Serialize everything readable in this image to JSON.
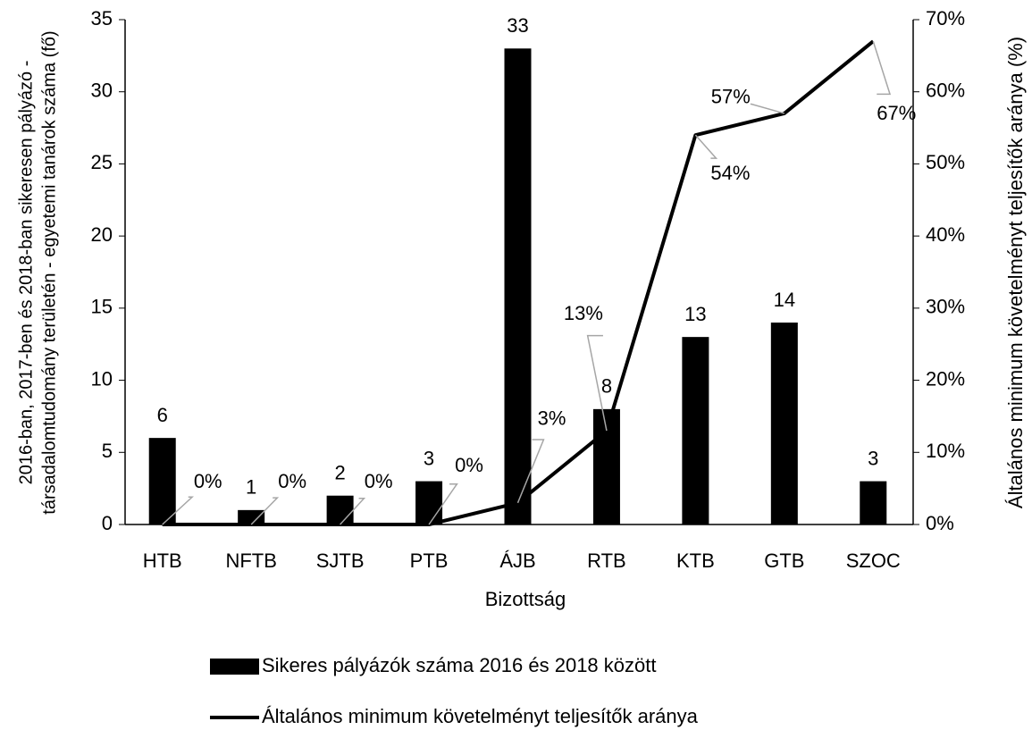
{
  "chart_data": {
    "type": "combo",
    "xlabel": "Bizottság",
    "ylabel": [
      "2016-ban, 2017-ben és 2018-ban sikeresen pályázó -",
      "társadalomtudomány területén - egyetemi  tanárok száma (fő)"
    ],
    "y2label": "Általános minimum követelményt teljesítők aránya (%)",
    "categories": [
      "HTB",
      "NFTB",
      "SJTB",
      "PTB",
      "ÁJB",
      "RTB",
      "KTB",
      "GTB",
      "SZOC"
    ],
    "ylim": [
      0,
      35
    ],
    "yticks": [
      0,
      5,
      10,
      15,
      20,
      25,
      30,
      35
    ],
    "y2lim": [
      0,
      70
    ],
    "y2ticks": [
      {
        "value": 0,
        "label": "0%"
      },
      {
        "value": 10,
        "label": "10%"
      },
      {
        "value": 20,
        "label": "20%"
      },
      {
        "value": 30,
        "label": "30%"
      },
      {
        "value": 40,
        "label": "40%"
      },
      {
        "value": 50,
        "label": "50%"
      },
      {
        "value": 60,
        "label": "60%"
      },
      {
        "value": 70,
        "label": "70%"
      }
    ],
    "series": [
      {
        "name": "Sikeres pályázók száma 2016 és 2018 között",
        "type": "bar",
        "color": "#000000",
        "values": [
          6,
          1,
          2,
          3,
          33,
          8,
          13,
          14,
          3
        ]
      },
      {
        "name": "Általános minimum követelményt teljesítők aránya",
        "type": "line",
        "axis": "y2",
        "color": "#000000",
        "values": [
          0,
          0,
          0,
          0,
          3,
          13,
          54,
          57,
          67
        ],
        "value_labels": [
          "0%",
          "0%",
          "0%",
          "0%",
          "3%",
          "13%",
          "54%",
          "57%",
          "67%"
        ]
      }
    ]
  }
}
